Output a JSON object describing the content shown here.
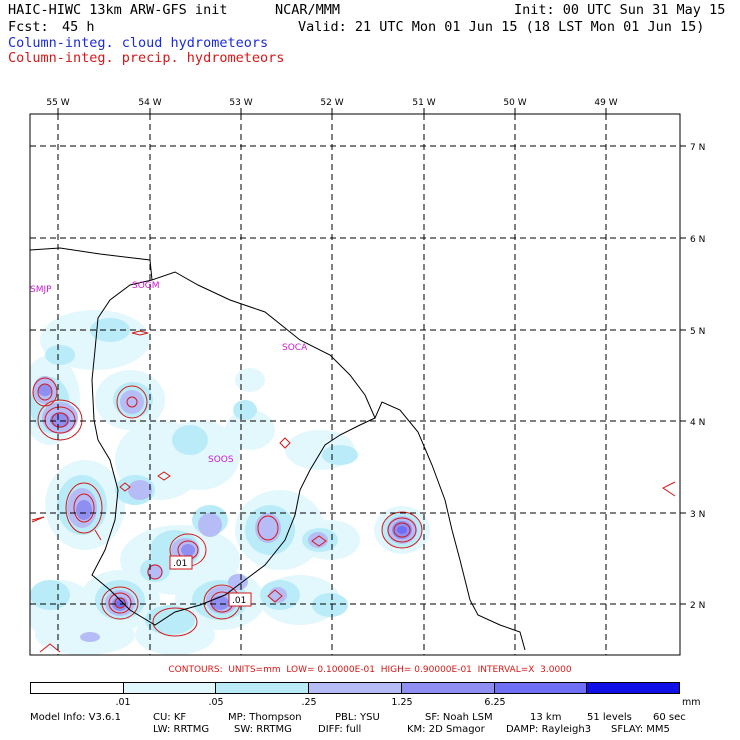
{
  "header": {
    "title": "HAIC-HIWC 13km ARW-GFS init",
    "org": "NCAR/MMM",
    "init": "Init: 00 UTC Sun 31 May 15",
    "fcst_label": "Fcst:",
    "fcst_value": "45 h",
    "valid": "Valid: 21 UTC Mon 01 Jun 15 (18 LST Mon 01 Jun 15)",
    "field_cloud": "Column-integ. cloud hydrometeors",
    "field_precip": "Column-integ. precip. hydrometeors"
  },
  "map": {
    "lon_labels": [
      "55 W",
      "54 W",
      "53 W",
      "52 W",
      "51 W",
      "50 W",
      "49 W"
    ],
    "lat_labels": [
      "7 N",
      "6 N",
      "5 N",
      "4 N",
      "3 N",
      "2 N"
    ],
    "stations": [
      "SMJP",
      "SOGM",
      "SOCA",
      "SOOS"
    ],
    "contour_tags": [
      ".01",
      ".01"
    ]
  },
  "contours_line": "CONTOURS:  UNITS=mm  LOW= 0.10000E-01  HIGH= 0.90000E-01  INTERVAL=X  3.0000",
  "colorbar": {
    "ticks": [
      ".01",
      ".05",
      ".25",
      "1.25",
      "6.25"
    ],
    "unit": "mm",
    "colors": [
      "#ffffff",
      "#e3f8fd",
      "#b9ecf8",
      "#b6bdf6",
      "#8e8ff0",
      "#6e6ff5",
      "#1010e6"
    ]
  },
  "model_info": {
    "line1": [
      "Model Info: V3.6.1",
      "CU: KF",
      "MP: Thompson",
      "PBL: YSU",
      "SF: Noah LSM",
      "13 km",
      "51 levels",
      "60 sec"
    ],
    "line2": [
      "LW: RRTMG",
      "SW: RRTMG",
      "DIFF: full",
      "KM: 2D Smagor",
      "DAMP: Rayleigh3",
      "SFLAY: MM5"
    ]
  }
}
